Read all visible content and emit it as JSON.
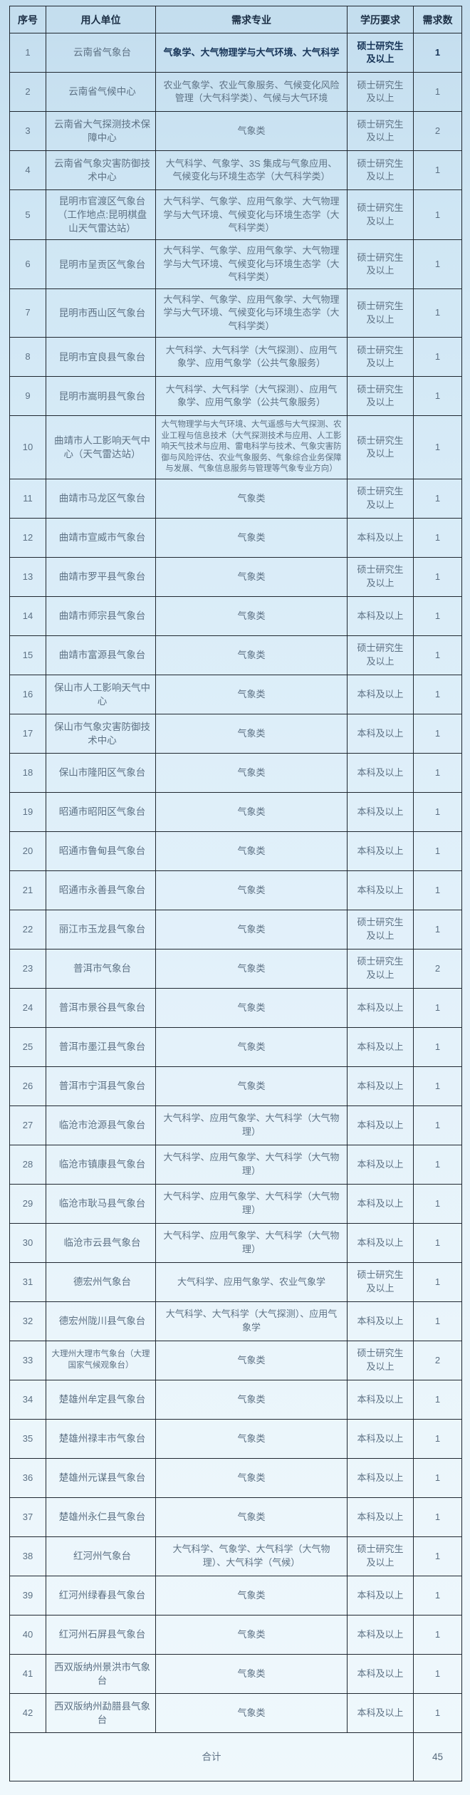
{
  "colors": {
    "background_top": "#c3ddee",
    "background_bottom": "#eff8fc",
    "border": "#1f2730",
    "text_normal": "#5d7184",
    "text_emphasis": "#173457",
    "text_header": "#1b2e44"
  },
  "table": {
    "headers": [
      "序号",
      "用人单位",
      "需求专业",
      "学历要求",
      "需求数"
    ],
    "rows": [
      {
        "no": "1",
        "unit": "云南省气象台",
        "major": "气象学、大气物理学与大气环境、大气科学",
        "edu": "硕士研究生及以上",
        "count": "1",
        "bold": true
      },
      {
        "no": "2",
        "unit": "云南省气候中心",
        "major": "农业气象学、农业气象服务、气候变化风险管理（大气科学类）、气候与大气环境",
        "edu": "硕士研究生及以上",
        "count": "1"
      },
      {
        "no": "3",
        "unit": "云南省大气探测技术保障中心",
        "major": "气象类",
        "edu": "硕士研究生及以上",
        "count": "2"
      },
      {
        "no": "4",
        "unit": "云南省气象灾害防御技术中心",
        "major": "大气科学、气象学、3S 集成与气象应用、气候变化与环境生态学（大气科学类）",
        "edu": "硕士研究生及以上",
        "count": "1"
      },
      {
        "no": "5",
        "unit": "昆明市官渡区气象台（工作地点:昆明棋盘山天气雷达站）",
        "major": "大气科学、气象学、应用气象学、大气物理学与大气环境、气候变化与环境生态学（大气科学类）",
        "edu": "硕士研究生及以上",
        "count": "1"
      },
      {
        "no": "6",
        "unit": "昆明市呈贡区气象台",
        "major": "大气科学、气象学、应用气象学、大气物理学与大气环境、气候变化与环境生态学（大气科学类）",
        "edu": "硕士研究生及以上",
        "count": "1"
      },
      {
        "no": "7",
        "unit": "昆明市西山区气象台",
        "major": "大气科学、气象学、应用气象学、大气物理学与大气环境、气候变化与环境生态学（大气科学类）",
        "edu": "硕士研究生及以上",
        "count": "1"
      },
      {
        "no": "8",
        "unit": "昆明市宜良县气象台",
        "major": "大气科学、大气科学（大气探测）、应用气象学、应用气象学（公共气象服务）",
        "edu": "硕士研究生及以上",
        "count": "1"
      },
      {
        "no": "9",
        "unit": "昆明市嵩明县气象台",
        "major": "大气科学、大气科学（大气探测）、应用气象学、应用气象学（公共气象服务）",
        "edu": "硕士研究生及以上",
        "count": "1"
      },
      {
        "no": "10",
        "unit": "曲靖市人工影响天气中心（天气雷达站）",
        "major": "大气物理学与大气环境、大气遥感与大气探测、农业工程与信息技术（大气探测技术与应用、人工影响天气技术与应用、雷电科学与技术、气象灾害防御与风险评估、农业气象服务、气象综合业务保障与发展、气象信息服务与管理等气象专业方向）",
        "edu": "硕士研究生及以上",
        "count": "1",
        "small_major": true
      },
      {
        "no": "11",
        "unit": "曲靖市马龙区气象台",
        "major": "气象类",
        "edu": "硕士研究生及以上",
        "count": "1"
      },
      {
        "no": "12",
        "unit": "曲靖市宣威市气象台",
        "major": "气象类",
        "edu": "本科及以上",
        "count": "1"
      },
      {
        "no": "13",
        "unit": "曲靖市罗平县气象台",
        "major": "气象类",
        "edu": "硕士研究生及以上",
        "count": "1"
      },
      {
        "no": "14",
        "unit": "曲靖市师宗县气象台",
        "major": "气象类",
        "edu": "本科及以上",
        "count": "1"
      },
      {
        "no": "15",
        "unit": "曲靖市富源县气象台",
        "major": "气象类",
        "edu": "硕士研究生及以上",
        "count": "1"
      },
      {
        "no": "16",
        "unit": "保山市人工影响天气中心",
        "major": "气象类",
        "edu": "本科及以上",
        "count": "1"
      },
      {
        "no": "17",
        "unit": "保山市气象灾害防御技术中心",
        "major": "气象类",
        "edu": "本科及以上",
        "count": "1"
      },
      {
        "no": "18",
        "unit": "保山市隆阳区气象台",
        "major": "气象类",
        "edu": "本科及以上",
        "count": "1"
      },
      {
        "no": "19",
        "unit": "昭通市昭阳区气象台",
        "major": "气象类",
        "edu": "本科及以上",
        "count": "1"
      },
      {
        "no": "20",
        "unit": "昭通市鲁甸县气象台",
        "major": "气象类",
        "edu": "本科及以上",
        "count": "1"
      },
      {
        "no": "21",
        "unit": "昭通市永善县气象台",
        "major": "气象类",
        "edu": "本科及以上",
        "count": "1"
      },
      {
        "no": "22",
        "unit": "丽江市玉龙县气象台",
        "major": "气象类",
        "edu": "硕士研究生及以上",
        "count": "1"
      },
      {
        "no": "23",
        "unit": "普洱市气象台",
        "major": "气象类",
        "edu": "硕士研究生及以上",
        "count": "2"
      },
      {
        "no": "24",
        "unit": "普洱市景谷县气象台",
        "major": "气象类",
        "edu": "本科及以上",
        "count": "1"
      },
      {
        "no": "25",
        "unit": "普洱市墨江县气象台",
        "major": "气象类",
        "edu": "本科及以上",
        "count": "1"
      },
      {
        "no": "26",
        "unit": "普洱市宁洱县气象台",
        "major": "气象类",
        "edu": "本科及以上",
        "count": "1"
      },
      {
        "no": "27",
        "unit": "临沧市沧源县气象台",
        "major": "大气科学、应用气象学、大气科学（大气物理）",
        "edu": "本科及以上",
        "count": "1"
      },
      {
        "no": "28",
        "unit": "临沧市镇康县气象台",
        "major": "大气科学、应用气象学、大气科学（大气物理）",
        "edu": "本科及以上",
        "count": "1"
      },
      {
        "no": "29",
        "unit": "临沧市耿马县气象台",
        "major": "大气科学、应用气象学、大气科学（大气物理）",
        "edu": "本科及以上",
        "count": "1"
      },
      {
        "no": "30",
        "unit": "临沧市云县气象台",
        "major": "大气科学、应用气象学、大气科学（大气物理）",
        "edu": "本科及以上",
        "count": "1"
      },
      {
        "no": "31",
        "unit": "德宏州气象台",
        "major": "大气科学、应用气象学、农业气象学",
        "edu": "硕士研究生及以上",
        "count": "1"
      },
      {
        "no": "32",
        "unit": "德宏州陇川县气象台",
        "major": "大气科学、大气科学（大气探测）、应用气象学",
        "edu": "本科及以上",
        "count": "1"
      },
      {
        "no": "33",
        "unit": "大理州大理市气象台（大理国家气候观象台）",
        "major": "气象类",
        "edu": "硕士研究生及以上",
        "count": "2",
        "small_unit": true
      },
      {
        "no": "34",
        "unit": "楚雄州牟定县气象台",
        "major": "气象类",
        "edu": "本科及以上",
        "count": "1"
      },
      {
        "no": "35",
        "unit": "楚雄州禄丰市气象台",
        "major": "气象类",
        "edu": "本科及以上",
        "count": "1"
      },
      {
        "no": "36",
        "unit": "楚雄州元谋县气象台",
        "major": "气象类",
        "edu": "本科及以上",
        "count": "1"
      },
      {
        "no": "37",
        "unit": "楚雄州永仁县气象台",
        "major": "气象类",
        "edu": "本科及以上",
        "count": "1"
      },
      {
        "no": "38",
        "unit": "红河州气象台",
        "major": "大气科学、气象学、大气科学（大气物理）、大气科学（气候）",
        "edu": "硕士研究生及以上",
        "count": "1"
      },
      {
        "no": "39",
        "unit": "红河州绿春县气象台",
        "major": "气象类",
        "edu": "本科及以上",
        "count": "1"
      },
      {
        "no": "40",
        "unit": "红河州石屏县气象台",
        "major": "气象类",
        "edu": "本科及以上",
        "count": "1"
      },
      {
        "no": "41",
        "unit": "西双版纳州景洪市气象台",
        "major": "气象类",
        "edu": "本科及以上",
        "count": "1"
      },
      {
        "no": "42",
        "unit": "西双版纳州勐腊县气象台",
        "major": "气象类",
        "edu": "本科及以上",
        "count": "1"
      }
    ],
    "footer": {
      "label": "合计",
      "total": "45"
    }
  }
}
